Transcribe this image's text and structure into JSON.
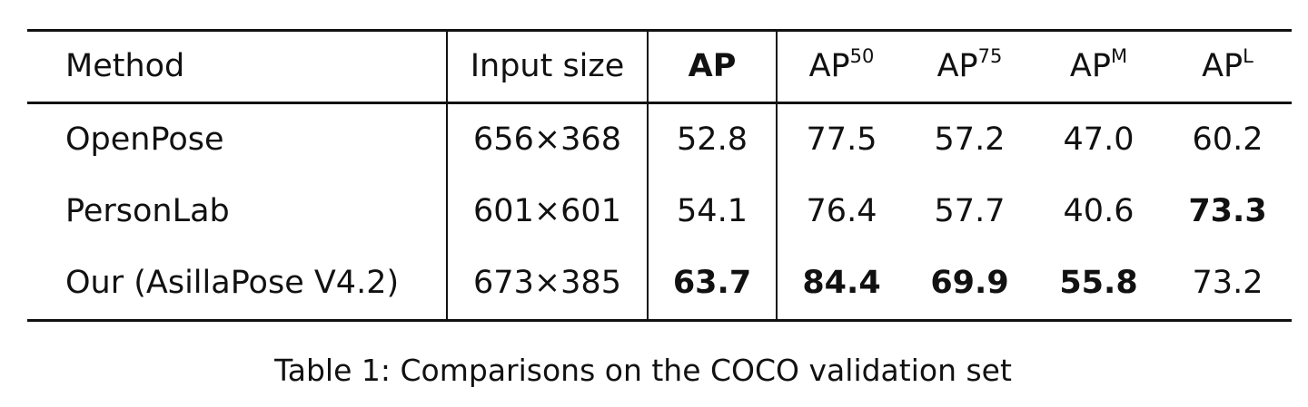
{
  "table": {
    "headers": {
      "method": "Method",
      "input_size": "Input size",
      "ap": "AP",
      "ap50_base": "AP",
      "ap50_sup": "50",
      "ap75_base": "AP",
      "ap75_sup": "75",
      "apm_base": "AP",
      "apm_sup": "M",
      "apl_base": "AP",
      "apl_sup": "L"
    },
    "rows": [
      {
        "method": "OpenPose",
        "input_size": "656×368",
        "ap": "52.8",
        "ap50": "77.5",
        "ap75": "57.2",
        "apm": "47.0",
        "apl": "60.2"
      },
      {
        "method": "PersonLab",
        "input_size": "601×601",
        "ap": "54.1",
        "ap50": "76.4",
        "ap75": "57.7",
        "apm": "40.6",
        "apl": "73.3"
      },
      {
        "method": "Our (AsillaPose V4.2)",
        "input_size": "673×385",
        "ap": "63.7",
        "ap50": "84.4",
        "ap75": "69.9",
        "apm": "55.8",
        "apl": "73.2"
      }
    ]
  },
  "caption": "Table 1: Comparisons on the COCO validation set"
}
